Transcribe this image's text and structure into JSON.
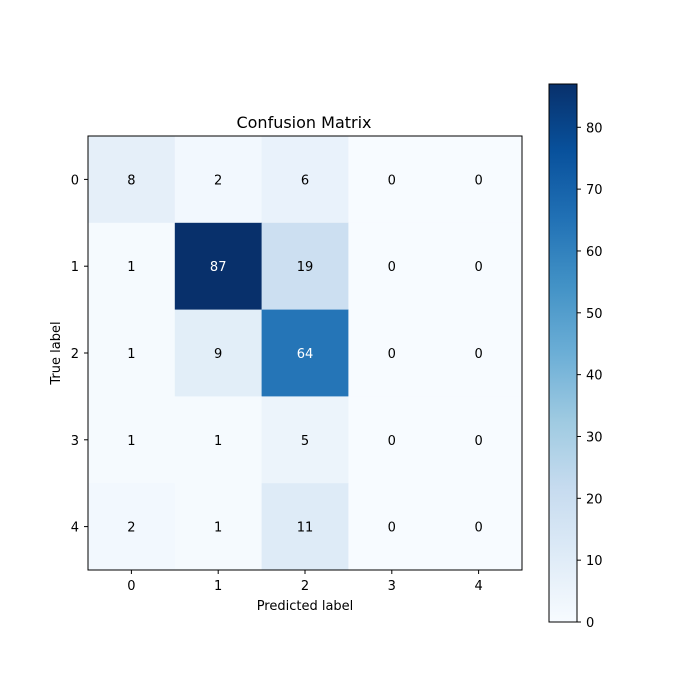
{
  "chart_data": {
    "type": "heatmap",
    "title": "Confusion Matrix",
    "xlabel": "Predicted label",
    "ylabel": "True label",
    "x_categories": [
      "0",
      "1",
      "2",
      "3",
      "4"
    ],
    "y_categories": [
      "0",
      "1",
      "2",
      "3",
      "4"
    ],
    "values": [
      [
        8,
        2,
        6,
        0,
        0
      ],
      [
        1,
        87,
        19,
        0,
        0
      ],
      [
        1,
        9,
        64,
        0,
        0
      ],
      [
        1,
        1,
        5,
        0,
        0
      ],
      [
        2,
        1,
        11,
        0,
        0
      ]
    ],
    "colormap": "Blues",
    "vmin": 0,
    "vmax": 87,
    "colorbar_ticks": [
      0,
      10,
      20,
      30,
      40,
      50,
      60,
      70,
      80
    ],
    "grid": false,
    "colors": {
      "low": "#f7fbff",
      "high": "#08306b",
      "text_dark": "#000000",
      "text_light": "#ffffff"
    }
  }
}
